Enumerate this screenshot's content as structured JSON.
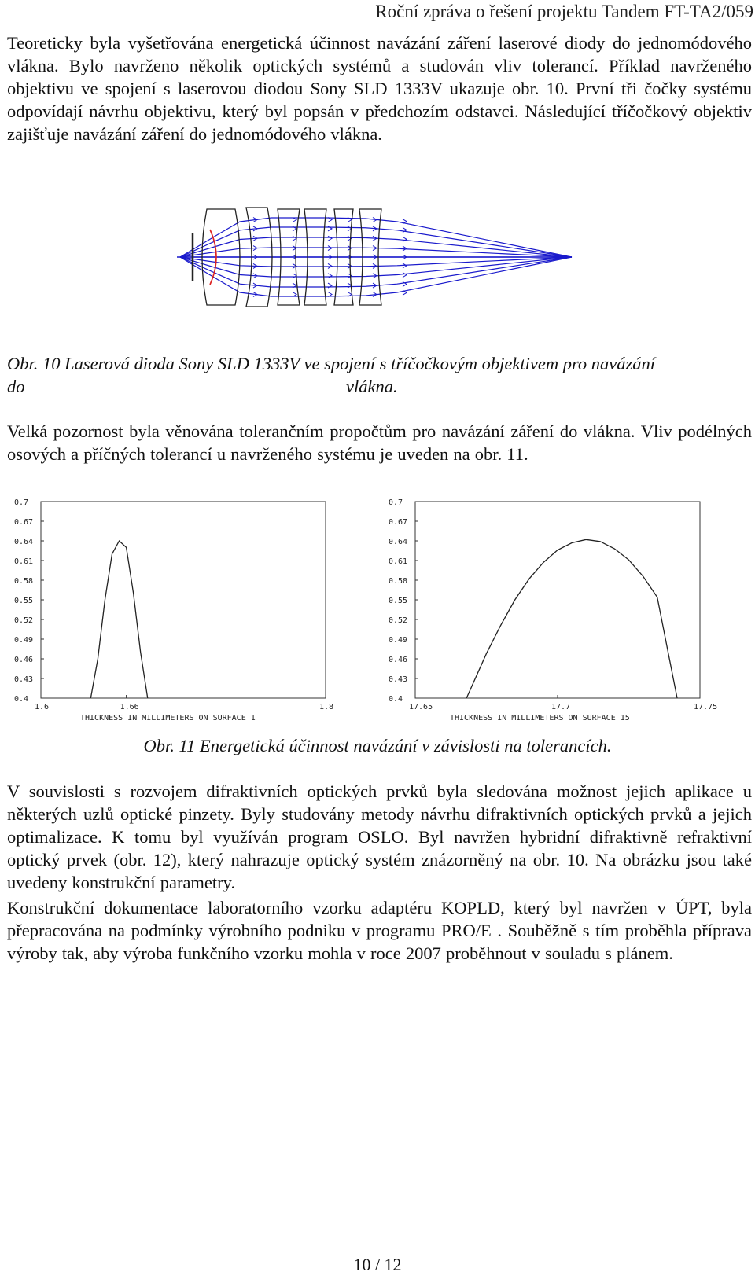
{
  "header": {
    "title": "Roční zpráva o řešení projektu Tandem FT-TA2/059"
  },
  "paragraphs": {
    "p1": "Teoreticky byla vyšetřována energetická účinnost navázání záření laserové diody do jednomódového vlákna. Bylo navrženo několik optických systémů a studován vliv tolerancí. Příklad navrženého objektivu ve spojení s laserovou diodou Sony SLD 1333V ukazuje obr. 10. První tři čočky systému odpovídají návrhu objektivu, který byl popsán v předchozím odstavci. Následující tříčočkový objektiv zajišťuje navázání záření do jednomódového vlákna.",
    "p2": "Velká pozornost byla věnována tolerančním propočtům pro navázání záření do vlákna. Vliv podélných osových a příčných tolerancí u navrženého systému je uveden na obr. 11.",
    "p3": "V souvislosti s rozvojem difraktivních optických prvků byla sledována možnost jejich aplikace u některých uzlů optické pinzety. Byly studovány metody návrhu difraktivních optických prvků a jejich optimalizace. K tomu byl využíván program OSLO. Byl navržen hybridní difraktivně refraktivní optický prvek (obr. 12), který nahrazuje optický systém znázorněný na obr. 10. Na obrázku jsou také uvedeny konstrukční parametry.",
    "p4": "Konstrukční dokumentace laboratorního vzorku adaptéru KOPLD, který byl navržen v ÚPT, byla přepracována na podmínky výrobního podniku v programu PRO/E . Souběžně s tím proběhla příprava výroby tak, aby výroba funkčního vzorku mohla v roce 2007 proběhnout v souladu s plánem."
  },
  "figure10": {
    "caption_line1": "Obr. 10 Laserová dioda Sony SLD 1333V ve spojení s tříčočkovým objektivem pro navázání",
    "caption_line2a": "do",
    "caption_line2b": "vlákna.",
    "colors": {
      "rays": "#1a1acc",
      "lens": "#222222",
      "wavefront": "#dd2222"
    }
  },
  "figure11": {
    "caption": "Obr. 11 Energetická účinnost navázání v závislosti na tolerancích."
  },
  "chart_data": [
    {
      "type": "line",
      "xlabel": "THICKNESS IN MILLIMETERS ON SURFACE 1",
      "ylabel": "",
      "x_ticks": [
        "1.6",
        "1.66",
        "1.8"
      ],
      "y_ticks": [
        "0.7",
        "0.67",
        "0.64",
        "0.61",
        "0.58",
        "0.55",
        "0.52",
        "0.49",
        "0.46",
        "0.43",
        "0.4"
      ],
      "xlim": [
        1.6,
        1.8
      ],
      "ylim": [
        0.4,
        0.7
      ],
      "grid": false,
      "x": [
        1.635,
        1.64,
        1.645,
        1.65,
        1.655,
        1.66,
        1.665,
        1.67,
        1.675
      ],
      "y": [
        0.4,
        0.46,
        0.55,
        0.62,
        0.64,
        0.63,
        0.56,
        0.47,
        0.4
      ]
    },
    {
      "type": "line",
      "xlabel": "THICKNESS IN MILLIMETERS ON SURFACE 15",
      "ylabel": "",
      "x_ticks": [
        "17.65",
        "17.7",
        "17.75"
      ],
      "y_ticks": [
        "0.7",
        "0.67",
        "0.64",
        "0.61",
        "0.58",
        "0.55",
        "0.52",
        "0.49",
        "0.46",
        "0.43",
        "0.4"
      ],
      "xlim": [
        17.65,
        17.75
      ],
      "ylim": [
        0.4,
        0.7
      ],
      "grid": false,
      "x": [
        17.668,
        17.675,
        17.68,
        17.685,
        17.69,
        17.695,
        17.7,
        17.705,
        17.71,
        17.715,
        17.72,
        17.725,
        17.73,
        17.735,
        17.742
      ],
      "y": [
        0.4,
        0.468,
        0.511,
        0.55,
        0.582,
        0.607,
        0.626,
        0.637,
        0.642,
        0.639,
        0.628,
        0.611,
        0.586,
        0.554,
        0.4
      ]
    }
  ],
  "footer": {
    "page": "10 / 12"
  }
}
